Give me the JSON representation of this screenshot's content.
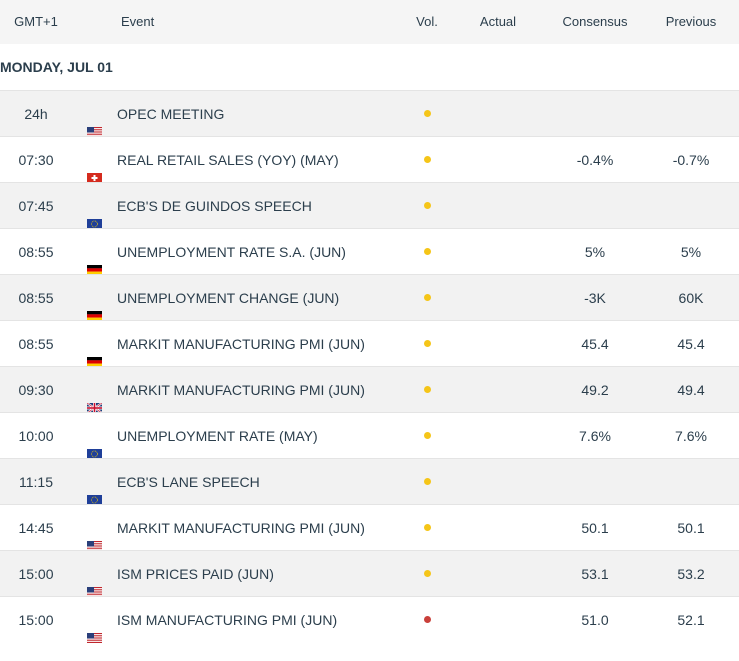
{
  "header": {
    "timezone": "GMT+1",
    "event": "Event",
    "volatility": "Vol.",
    "actual": "Actual",
    "consensus": "Consensus",
    "previous": "Previous"
  },
  "date": "MONDAY, JUL 01",
  "colors": {
    "medium": "#f5c518",
    "high": "#c9403a"
  },
  "rows": [
    {
      "time": "24h",
      "event": "OPEC MEETING",
      "volatility": "medium"
    },
    {
      "time": "07:30",
      "event": "REAL RETAIL SALES (YOY) (MAY)",
      "volatility": "medium",
      "consensus": "-0.4%",
      "previous": "-0.7%"
    },
    {
      "time": "07:45",
      "event": "ECB'S DE GUINDOS SPEECH",
      "volatility": "medium"
    },
    {
      "time": "08:55",
      "event": "UNEMPLOYMENT RATE S.A. (JUN)",
      "volatility": "medium",
      "consensus": "5%",
      "previous": "5%"
    },
    {
      "time": "08:55",
      "event": "UNEMPLOYMENT CHANGE (JUN)",
      "volatility": "medium",
      "consensus": "-3K",
      "previous": "60K"
    },
    {
      "time": "08:55",
      "event": "MARKIT MANUFACTURING PMI (JUN)",
      "volatility": "medium",
      "consensus": "45.4",
      "previous": "45.4"
    },
    {
      "time": "09:30",
      "event": "MARKIT MANUFACTURING PMI (JUN)",
      "volatility": "medium",
      "consensus": "49.2",
      "previous": "49.4"
    },
    {
      "time": "10:00",
      "event": "UNEMPLOYMENT RATE (MAY)",
      "volatility": "medium",
      "consensus": "7.6%",
      "previous": "7.6%"
    },
    {
      "time": "11:15",
      "event": "ECB'S LANE SPEECH",
      "volatility": "medium"
    },
    {
      "time": "14:45",
      "event": "MARKIT MANUFACTURING PMI (JUN)",
      "volatility": "medium",
      "consensus": "50.1",
      "previous": "50.1"
    },
    {
      "time": "15:00",
      "event": "ISM PRICES PAID (JUN)",
      "volatility": "medium",
      "consensus": "53.1",
      "previous": "53.2"
    },
    {
      "time": "15:00",
      "event": "ISM MANUFACTURING PMI (JUN)",
      "volatility": "high",
      "consensus": "51.0",
      "previous": "52.1"
    }
  ]
}
